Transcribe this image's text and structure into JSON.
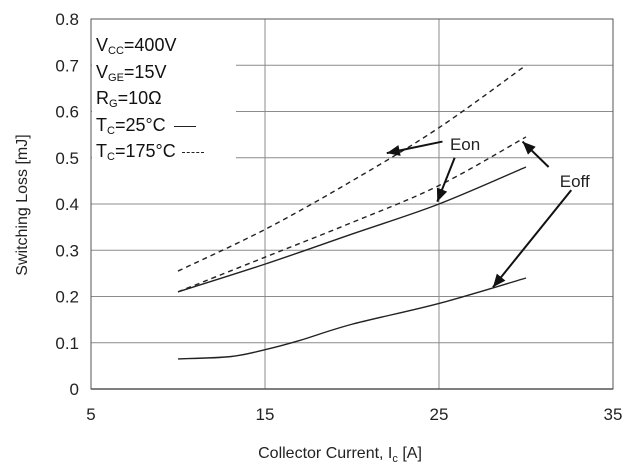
{
  "chart_data": {
    "type": "line",
    "title": "",
    "xlabel": "Collector Current, I",
    "xlabel_sub": "c",
    "xlabel_unit": " [A]",
    "ylabel": "Switching Loss  [mJ]",
    "xlim": [
      5,
      35
    ],
    "ylim": [
      0,
      0.8
    ],
    "xticks": [
      5,
      15,
      25,
      35
    ],
    "yticks": [
      0,
      0.1,
      0.2,
      0.3,
      0.4,
      0.5,
      0.6,
      0.7,
      0.8
    ],
    "xtick_labels": [
      "5",
      "15",
      "25",
      "35"
    ],
    "ytick_labels": [
      "0",
      "0.1",
      "0.2",
      "0.3",
      "0.4",
      "0.5",
      "0.6",
      "0.7",
      "0.8"
    ],
    "grid": true,
    "series": [
      {
        "style": "solid",
        "curve": "Eon",
        "x": [
          10,
          15,
          20,
          25,
          30
        ],
        "y": [
          0.21,
          0.27,
          0.335,
          0.4,
          0.48
        ]
      },
      {
        "style": "solid",
        "curve": "Eoff",
        "x": [
          10,
          13,
          15,
          17,
          20,
          25,
          30
        ],
        "y": [
          0.065,
          0.07,
          0.085,
          0.105,
          0.14,
          0.185,
          0.24
        ]
      },
      {
        "style": "dashed",
        "curve": "Eon",
        "x": [
          10,
          15,
          20,
          25,
          30
        ],
        "y": [
          0.255,
          0.345,
          0.45,
          0.565,
          0.7
        ]
      },
      {
        "style": "dashed",
        "curve": "Eoff",
        "x": [
          10,
          15,
          20,
          25,
          30
        ],
        "y": [
          0.21,
          0.285,
          0.36,
          0.44,
          0.545
        ]
      }
    ],
    "annotations": [
      {
        "text": "Eon",
        "label_x": 26.5,
        "label_y": 0.53
      },
      {
        "text": "Eoff",
        "label_x": 32.8,
        "label_y": 0.45
      }
    ],
    "arrows": [
      {
        "from": [
          25.2,
          0.535
        ],
        "to": [
          22.0,
          0.51
        ]
      },
      {
        "from": [
          25.9,
          0.5
        ],
        "to": [
          24.9,
          0.405
        ]
      },
      {
        "from": [
          31.3,
          0.48
        ],
        "to": [
          29.8,
          0.535
        ]
      },
      {
        "from": [
          32.6,
          0.43
        ],
        "to": [
          28.1,
          0.22
        ]
      }
    ],
    "legend": {
      "placement": "top-left",
      "vcc_label": "V",
      "vcc_sub": "CC",
      "vcc_value": "=400V",
      "vge_label": "V",
      "vge_sub": "GE",
      "vge_value": "=15V",
      "rg_label": "R",
      "rg_sub": "G",
      "rg_value": "=10Ω",
      "tc1_label": "T",
      "tc1_sub": "C",
      "tc1_value": "=25°C",
      "tc2_label": "T",
      "tc2_sub": "C",
      "tc2_value": "=175°C"
    },
    "colors": {
      "line": "#222222",
      "grid": "#8c8c8c",
      "axis": "#555555"
    }
  }
}
